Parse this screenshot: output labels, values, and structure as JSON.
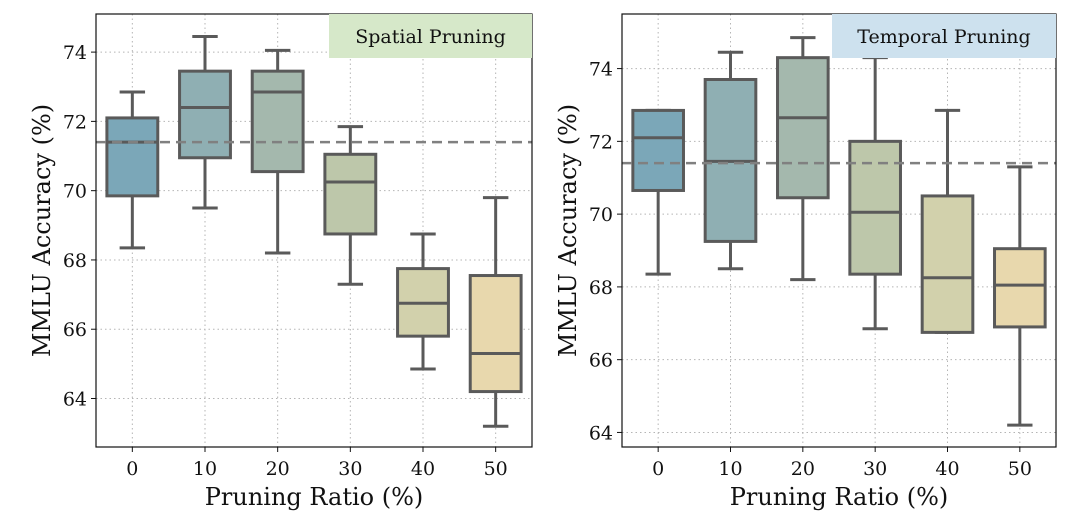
{
  "chart_data": [
    {
      "type": "box",
      "title": "Spatial Pruning",
      "xlabel": "Pruning Ratio (%)",
      "ylabel": "MMLU Accuracy (%)",
      "categories": [
        "0",
        "10",
        "20",
        "30",
        "40",
        "50"
      ],
      "ylim": [
        62.6,
        75.1
      ],
      "yticks": [
        64,
        66,
        68,
        70,
        72,
        74
      ],
      "reference_line": 71.4,
      "title_bg": "#d6e8c9",
      "boxes": [
        {
          "min": 68.35,
          "q1": 69.85,
          "median": 71.4,
          "q3": 72.1,
          "max": 72.85,
          "color": "#7ba7b8"
        },
        {
          "min": 69.5,
          "q1": 70.95,
          "median": 72.4,
          "q3": 73.45,
          "max": 74.45,
          "color": "#8fafb3"
        },
        {
          "min": 68.2,
          "q1": 70.55,
          "median": 72.85,
          "q3": 73.45,
          "max": 74.05,
          "color": "#a4b8ad"
        },
        {
          "min": 67.3,
          "q1": 68.75,
          "median": 70.25,
          "q3": 71.05,
          "max": 71.85,
          "color": "#bdc7aa"
        },
        {
          "min": 64.85,
          "q1": 65.8,
          "median": 66.75,
          "q3": 67.75,
          "max": 68.75,
          "color": "#d2d1ac"
        },
        {
          "min": 63.2,
          "q1": 64.2,
          "median": 65.3,
          "q3": 67.55,
          "max": 69.8,
          "color": "#e8d8ad"
        }
      ]
    },
    {
      "type": "box",
      "title": "Temporal Pruning",
      "xlabel": "Pruning Ratio (%)",
      "ylabel": "MMLU Accuracy (%)",
      "categories": [
        "0",
        "10",
        "20",
        "30",
        "40",
        "50"
      ],
      "ylim": [
        63.6,
        75.5
      ],
      "yticks": [
        64,
        66,
        68,
        70,
        72,
        74
      ],
      "reference_line": 71.4,
      "title_bg": "#cde1ee",
      "boxes": [
        {
          "min": 68.35,
          "q1": 70.65,
          "median": 72.1,
          "q3": 72.85,
          "max": 72.85,
          "color": "#7ba7b8"
        },
        {
          "min": 68.5,
          "q1": 69.25,
          "median": 71.45,
          "q3": 73.7,
          "max": 74.45,
          "color": "#8fafb3"
        },
        {
          "min": 68.2,
          "q1": 70.45,
          "median": 72.65,
          "q3": 74.3,
          "max": 74.85,
          "color": "#a4b8ad"
        },
        {
          "min": 66.85,
          "q1": 68.35,
          "median": 70.05,
          "q3": 72.0,
          "max": 74.3,
          "color": "#bdc7aa"
        },
        {
          "min": 66.75,
          "q1": 66.75,
          "median": 68.25,
          "q3": 70.5,
          "max": 72.85,
          "color": "#d2d1ac"
        },
        {
          "min": 64.2,
          "q1": 66.9,
          "median": 68.05,
          "q3": 69.05,
          "max": 71.3,
          "color": "#e8d8ad"
        }
      ]
    }
  ]
}
